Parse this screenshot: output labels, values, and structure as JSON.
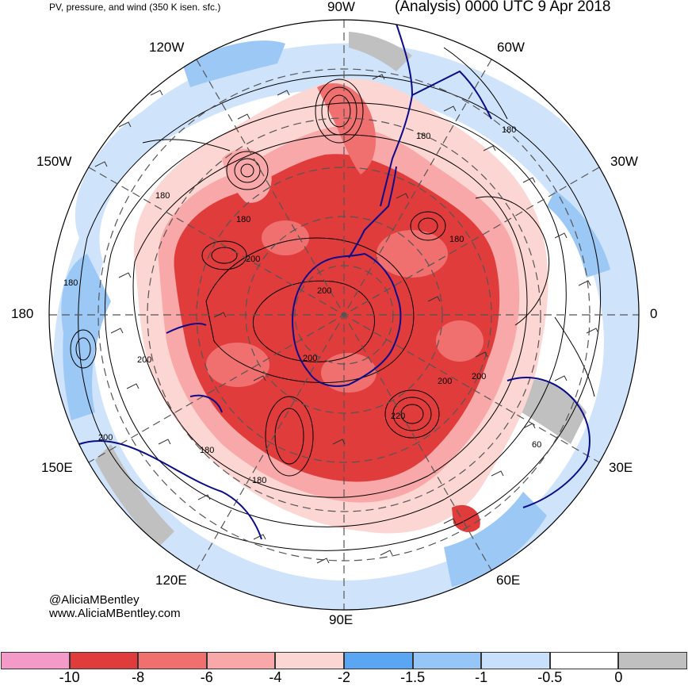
{
  "title": {
    "left": "PV, pressure, and wind (350 K isen. sfc.)",
    "right": "(Analysis) 0000 UTC 9 Apr 2018"
  },
  "longitudes": [
    "90W",
    "60W",
    "30W",
    "0",
    "30E",
    "60E",
    "90E",
    "120E",
    "150E",
    "180",
    "150W",
    "120W"
  ],
  "contour_labels": [
    "180",
    "180",
    "180",
    "180",
    "180",
    "180",
    "180",
    "180",
    "200",
    "200",
    "200",
    "200",
    "200",
    "200",
    "200",
    "220",
    "60"
  ],
  "credit": {
    "handle": "@AliciaMBentley",
    "website": "www.AliciaMBentley.com"
  },
  "colorbar": {
    "colors": [
      "#f49ac8",
      "#e03c3c",
      "#f07070",
      "#f8a8a8",
      "#fcd6d2",
      "#5aa6f2",
      "#96c6f8",
      "#c8e0fc",
      "#ffffff",
      "#c0c0c0"
    ],
    "labels": [
      "-10",
      "-8",
      "-6",
      "-4",
      "-2",
      "-1.5",
      "-1",
      "-0.5",
      "0"
    ]
  },
  "colors": {
    "coastline": "#0b0b8a",
    "contour": "#000000",
    "graticule": "#555555"
  }
}
